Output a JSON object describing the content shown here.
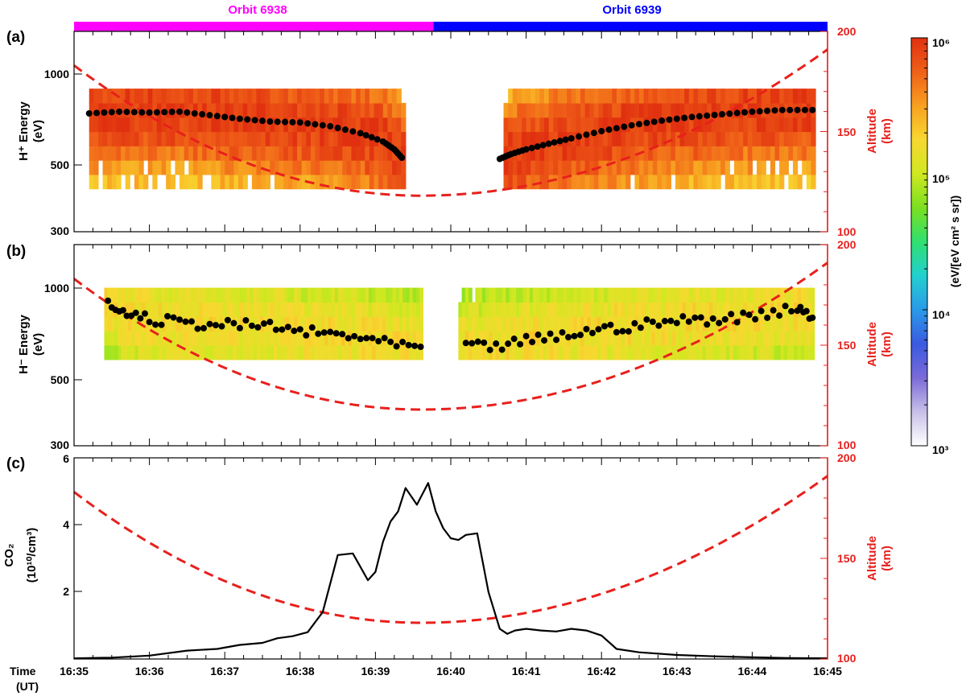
{
  "orbit_bar": {
    "left_label": "Orbit 6938",
    "right_label": "Orbit 6939",
    "left_color": "#ff00ff",
    "right_color": "#0000ff",
    "split_time_min": 4.77
  },
  "colorbar": {
    "ticks": [
      "10³",
      "10⁴",
      "10⁵",
      "10⁶"
    ],
    "label": "(eV/[eV cm² s sr])",
    "log_range": [
      3,
      6
    ],
    "colors": [
      "#ffffff",
      "#c8c0e8",
      "#7a6ad8",
      "#3a5ae0",
      "#2a9ae8",
      "#22d0d0",
      "#30e070",
      "#7ae020",
      "#d0e820",
      "#f8d830",
      "#f8a020",
      "#f06018",
      "#e03010"
    ]
  },
  "time_axis": {
    "title": "Time",
    "unit": "(UT)",
    "ticks": [
      "16:35",
      "16:36",
      "16:37",
      "16:38",
      "16:39",
      "16:40",
      "16:41",
      "16:42",
      "16:43",
      "16:44",
      "16:45"
    ]
  },
  "panels": {
    "a": {
      "letter": "(a)",
      "ylabel_main": "H⁺ Energy",
      "ylabel_unit": "(eV)",
      "y_ticks": [
        "300",
        "500",
        "1000"
      ],
      "right_ticks": [
        "100",
        "150",
        "200"
      ],
      "right_label_main": "Altitude",
      "right_label_unit": "(km)"
    },
    "b": {
      "letter": "(b)",
      "ylabel_main": "H⁻ Energy",
      "ylabel_unit": "(eV)",
      "y_ticks": [
        "300",
        "500",
        "1000"
      ],
      "right_ticks": [
        "100",
        "150",
        "200"
      ],
      "right_label_main": "Altitude",
      "right_label_unit": "(km)"
    },
    "c": {
      "letter": "(c)",
      "ylabel_main": "CO₂",
      "ylabel_unit": "(10¹⁰/cm³)",
      "y_ticks": [
        "2",
        "4",
        "6"
      ],
      "right_ticks": [
        "100",
        "150",
        "200"
      ],
      "right_label_main": "Altitude",
      "right_label_unit": "(km)"
    }
  },
  "chart_data": [
    {
      "type": "heatmap",
      "panel": "a",
      "x_unit": "minutes after 16:35 UT",
      "xlim": [
        0,
        10
      ],
      "ylim": [
        300,
        1400
      ],
      "yscale": "log",
      "y2lim": [
        100,
        200
      ],
      "energy_peak_series": {
        "segments": [
          {
            "x": [
              0.2,
              0.6,
              1.0,
              1.4,
              1.8,
              2.2,
              2.6,
              3.0,
              3.4,
              3.8,
              4.1,
              4.25,
              4.35
            ],
            "y": [
              745,
              755,
              750,
              755,
              735,
              715,
              700,
              695,
              675,
              640,
              600,
              565,
              530
            ]
          },
          {
            "x": [
              5.65,
              5.8,
              6.0,
              6.3,
              6.6,
              7.0,
              7.4,
              7.8,
              8.2,
              8.6,
              9.0,
              9.4,
              9.8
            ],
            "y": [
              525,
              545,
              565,
              590,
              615,
              650,
              680,
              705,
              725,
              740,
              755,
              765,
              765
            ]
          }
        ]
      },
      "spectrogram_ranges": [
        {
          "x0": 0.2,
          "x1": 4.4,
          "y_min": 400,
          "y_max": 900
        },
        {
          "x0": 5.7,
          "x1": 9.8,
          "y_min": 400,
          "y_max": 900
        }
      ],
      "altitude_series": {
        "vertex_time_min": 4.6,
        "min_km": 118,
        "start_km": 183,
        "end_km": 191
      }
    },
    {
      "type": "heatmap",
      "panel": "b",
      "x_unit": "minutes after 16:35 UT",
      "xlim": [
        0,
        10
      ],
      "ylim": [
        300,
        1400
      ],
      "yscale": "log",
      "y2lim": [
        100,
        200
      ],
      "energy_peak_series": {
        "segments": [
          {
            "x": [
              0.45,
              0.7,
              1.0,
              1.4,
              1.8,
              2.2,
              2.6,
              3.0,
              3.4,
              3.8,
              4.2,
              4.6
            ],
            "y": [
              880,
              830,
              790,
              770,
              760,
              755,
              750,
              720,
              705,
              690,
              650,
              640
            ]
          },
          {
            "x": [
              5.2,
              5.6,
              6.0,
              6.4,
              6.8,
              7.2,
              7.6,
              8.0,
              8.4,
              8.8,
              9.2,
              9.6,
              9.8
            ],
            "y": [
              640,
              640,
              670,
              690,
              720,
              740,
              760,
              780,
              790,
              800,
              830,
              870,
              800
            ]
          }
        ]
      },
      "spectrogram_ranges": [
        {
          "x0": 0.4,
          "x1": 4.6,
          "y_min": 580,
          "y_max": 1000
        },
        {
          "x0": 5.1,
          "x1": 9.8,
          "y_min": 580,
          "y_max": 1000
        }
      ],
      "altitude_series": {
        "vertex_time_min": 4.6,
        "min_km": 118,
        "start_km": 183,
        "end_km": 191
      }
    },
    {
      "type": "line",
      "panel": "c",
      "x_unit": "minutes after 16:35 UT",
      "xlim": [
        0,
        10
      ],
      "ylim": [
        0,
        6
      ],
      "y2lim": [
        100,
        200
      ],
      "series": [
        {
          "x": [
            0.0,
            0.5,
            1.0,
            1.5,
            1.9,
            2.2,
            2.5,
            2.7,
            2.9,
            3.1,
            3.3,
            3.5,
            3.7,
            3.9,
            4.0,
            4.1,
            4.2,
            4.3,
            4.4,
            4.55,
            4.7,
            4.8,
            4.9,
            5.0,
            5.1,
            5.2,
            5.35,
            5.5,
            5.65,
            5.75,
            5.85,
            6.0,
            6.2,
            6.4,
            6.6,
            6.8,
            7.0,
            7.2,
            7.5,
            8.0,
            8.5,
            9.0,
            9.5,
            10.0
          ],
          "y": [
            0.02,
            0.04,
            0.1,
            0.25,
            0.3,
            0.42,
            0.48,
            0.62,
            0.68,
            0.8,
            1.4,
            3.1,
            3.15,
            2.35,
            2.6,
            3.5,
            4.1,
            4.4,
            5.1,
            4.6,
            5.25,
            4.4,
            3.9,
            3.6,
            3.55,
            3.7,
            3.75,
            2.0,
            0.9,
            0.75,
            0.85,
            0.9,
            0.85,
            0.82,
            0.9,
            0.85,
            0.7,
            0.3,
            0.2,
            0.12,
            0.08,
            0.05,
            0.03,
            0.02
          ]
        }
      ],
      "altitude_series": {
        "vertex_time_min": 4.6,
        "min_km": 118,
        "start_km": 183,
        "end_km": 191
      }
    }
  ]
}
